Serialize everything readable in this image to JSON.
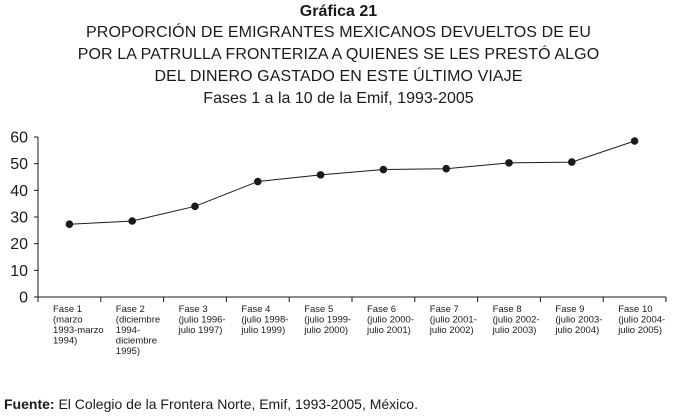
{
  "header": {
    "label": "Gráfica 21",
    "title_lines": [
      "PROPORCIÓN DE EMIGRANTES MEXICANOS DEVUELTOS DE EU",
      "POR LA PATRULLA FRONTERIZA A QUIENES SE LES PRESTÓ ALGO",
      "DEL DINERO GASTADO EN ESTE ÚLTIMO VIAJE"
    ],
    "subtitle": "Fases 1 a la 10 de la Emif, 1993-2005"
  },
  "source": {
    "label": "Fuente:",
    "text": "El Colegio de la Frontera Norte, Emif, 1993-2005, México."
  },
  "chart_data": {
    "type": "line",
    "title": "PROPORCIÓN DE EMIGRANTES MEXICANOS DEVUELTOS DE EU POR LA PATRULLA FRONTERIZA A QUIENES SE LES PRESTÓ ALGO DEL DINERO GASTADO EN ESTE ÚLTIMO VIAJE",
    "subtitle": "Fases 1 a la 10 de la Emif, 1993-2005",
    "xlabel": "",
    "ylabel": "",
    "ylim": [
      0,
      60
    ],
    "yticks": [
      0,
      10,
      20,
      30,
      40,
      50,
      60
    ],
    "grid": false,
    "categories": [
      [
        "Fase 1",
        "(marzo",
        "1993-marzo",
        "1994)"
      ],
      [
        "Fase 2",
        "(diciembre",
        "1994-",
        "diciembre",
        "1995)"
      ],
      [
        "Fase 3",
        "(julio 1996-",
        "julio 1997)"
      ],
      [
        "Fase 4",
        "(julio 1998-",
        "julio 1999)"
      ],
      [
        "Fase 5",
        "(julio 1999-",
        "julio 2000)"
      ],
      [
        "Fase 6",
        "(julio 2000-",
        "julio 2001)"
      ],
      [
        "Fase 7",
        "(julio 2001-",
        "julio 2002)"
      ],
      [
        "Fase 8",
        "(julio 2002-",
        "julio 2003)"
      ],
      [
        "Fase 9",
        "(julio 2003-",
        "julio 2004)"
      ],
      [
        "Fase 10",
        "(julio 2004-",
        "julio 2005)"
      ]
    ],
    "values": [
      27.3,
      28.5,
      34.0,
      43.3,
      45.8,
      47.8,
      48.1,
      50.3,
      50.6,
      58.5
    ],
    "line_color": "#1a1a1a",
    "axis_color": "#1a1a1a"
  }
}
